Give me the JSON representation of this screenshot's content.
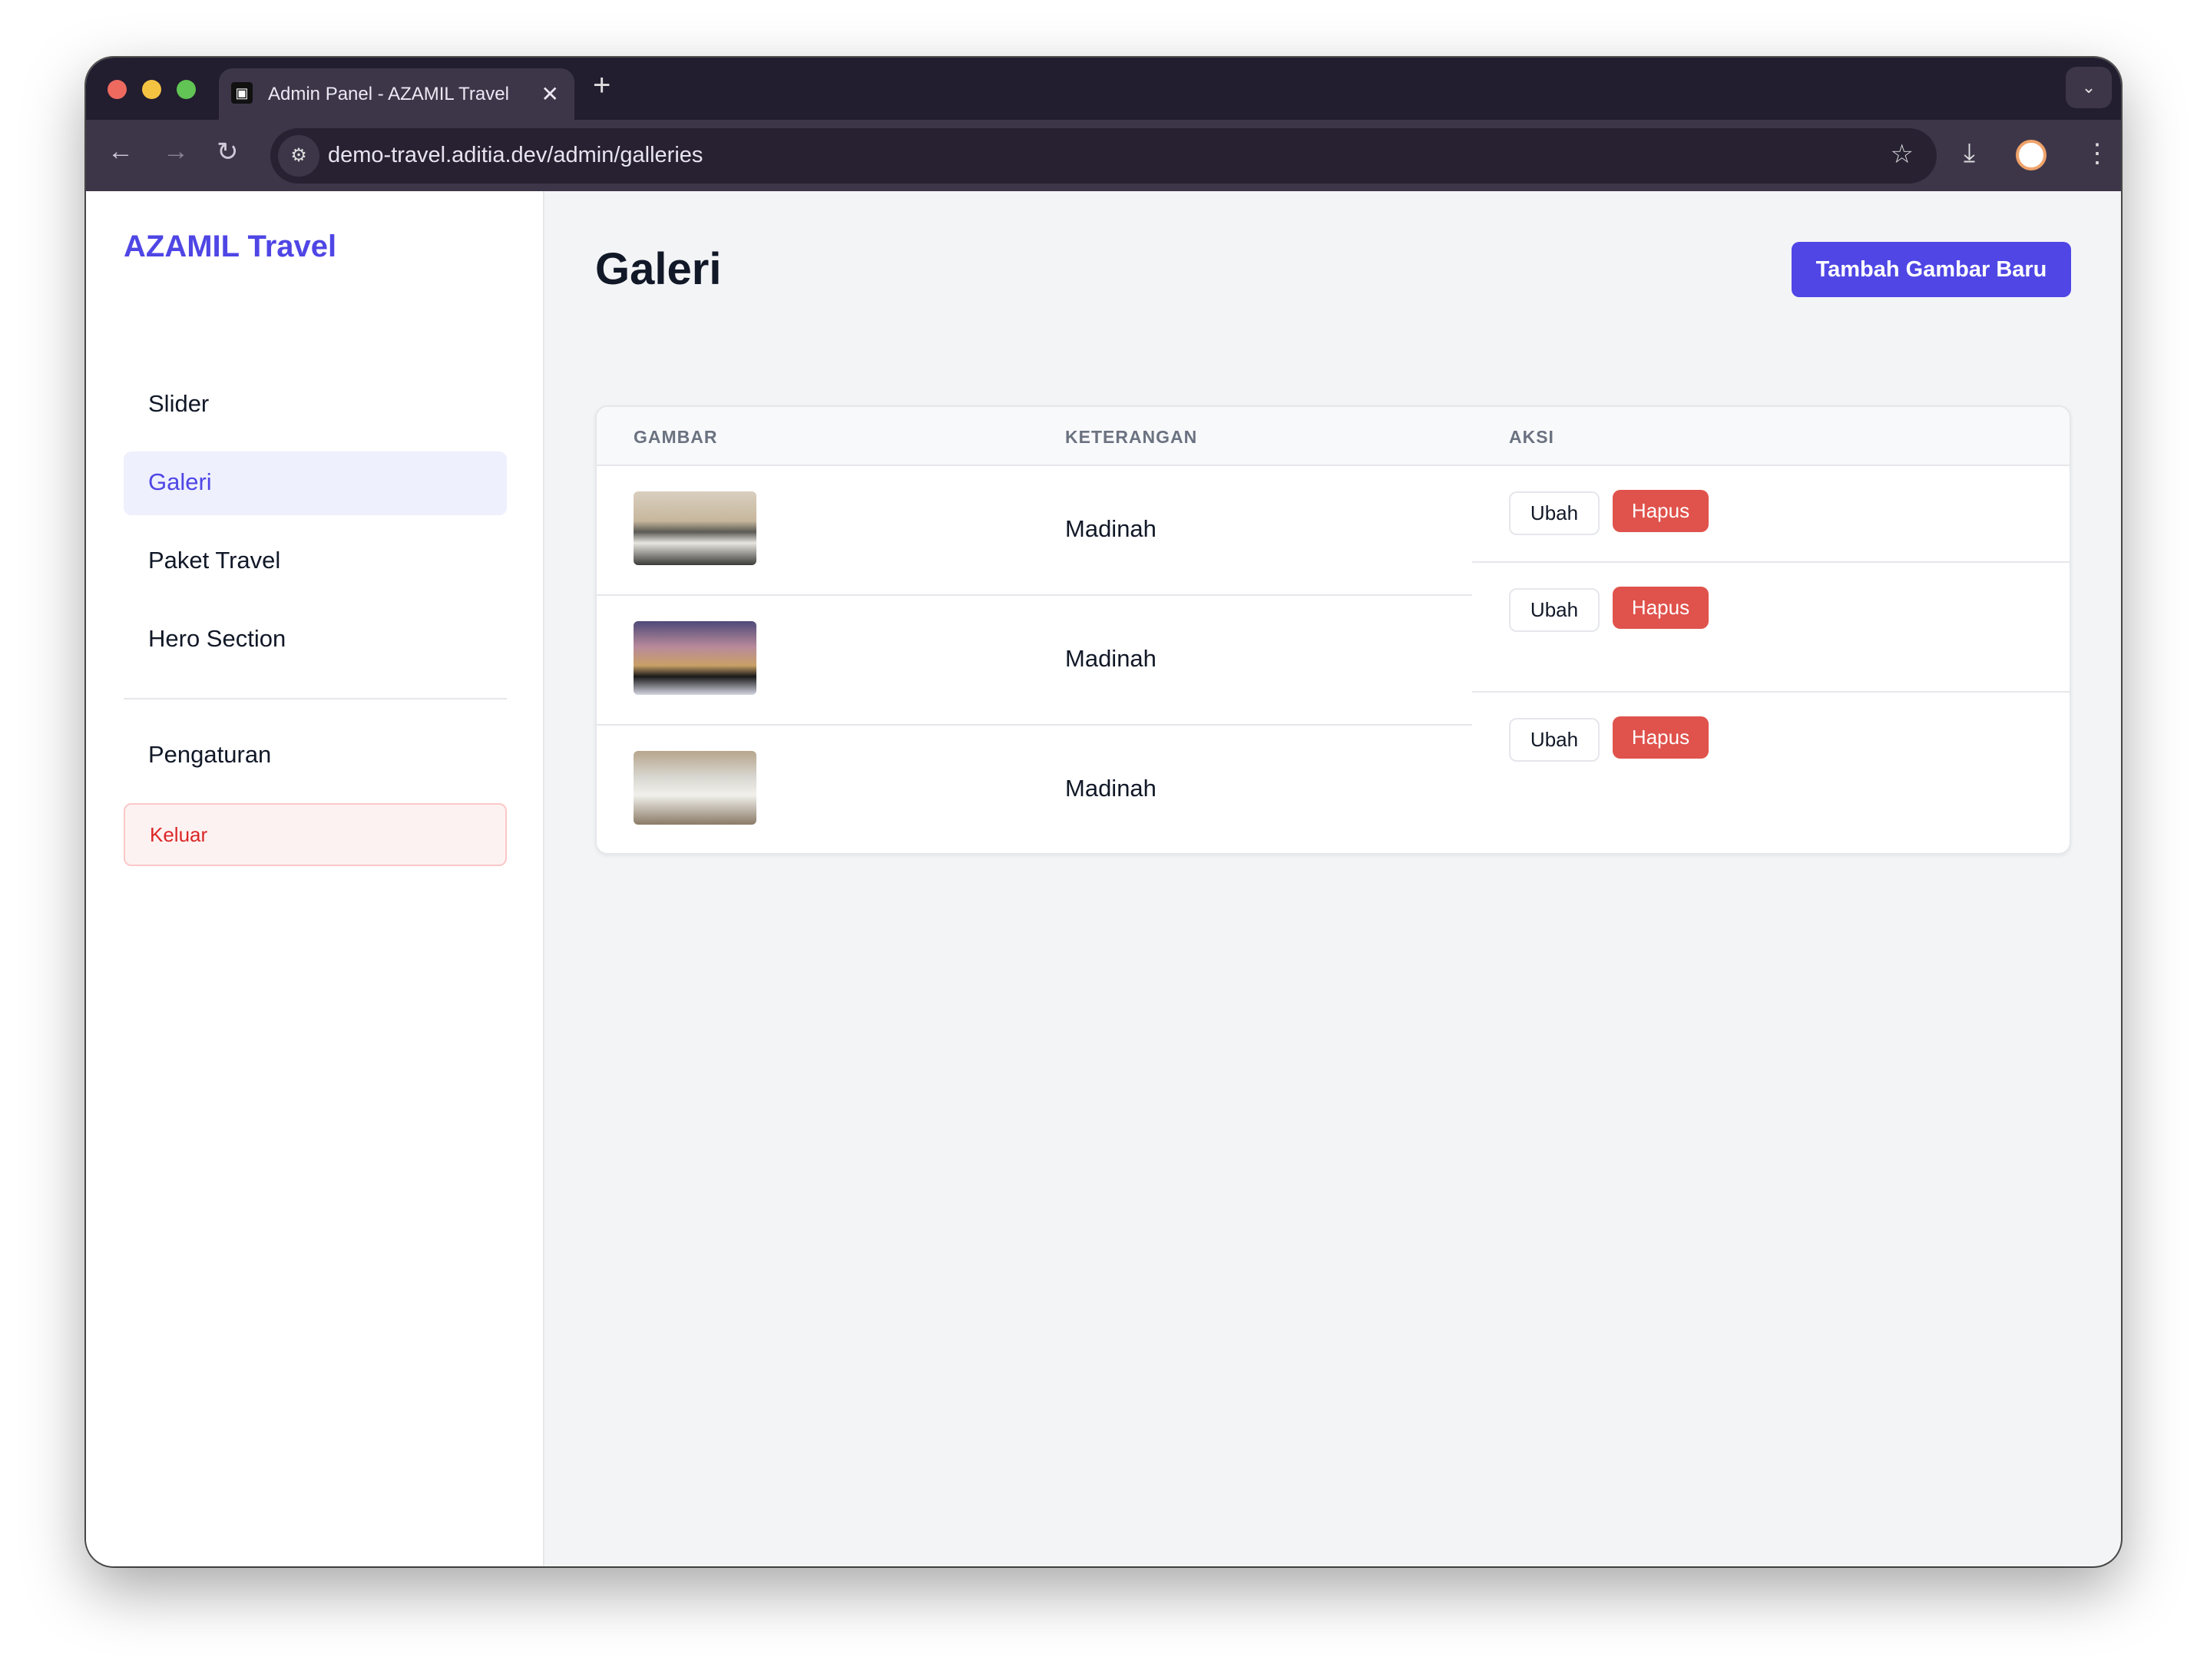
{
  "browser": {
    "tab_title": "Admin Panel - AZAMIL Travel",
    "url": "demo-travel.aditia.dev/admin/galleries"
  },
  "sidebar": {
    "brand": "AZAMIL Travel",
    "items": [
      {
        "label": "Slider",
        "active": false
      },
      {
        "label": "Galeri",
        "active": true
      },
      {
        "label": "Paket Travel",
        "active": false
      },
      {
        "label": "Hero Section",
        "active": false
      }
    ],
    "settings": "Pengaturan",
    "logout": "Keluar"
  },
  "main": {
    "title": "Galeri",
    "add_button": "Tambah Gambar Baru",
    "columns": [
      "GAMBAR",
      "KETERANGAN",
      "AKSI"
    ],
    "rows": [
      {
        "description": "Madinah",
        "edit": "Ubah",
        "delete": "Hapus"
      },
      {
        "description": "Madinah",
        "edit": "Ubah",
        "delete": "Hapus"
      },
      {
        "description": "Madinah",
        "edit": "Ubah",
        "delete": "Hapus"
      }
    ]
  },
  "colors": {
    "accent": "#4f46e5",
    "danger": "#e0524c",
    "background": "#f3f4f6"
  }
}
